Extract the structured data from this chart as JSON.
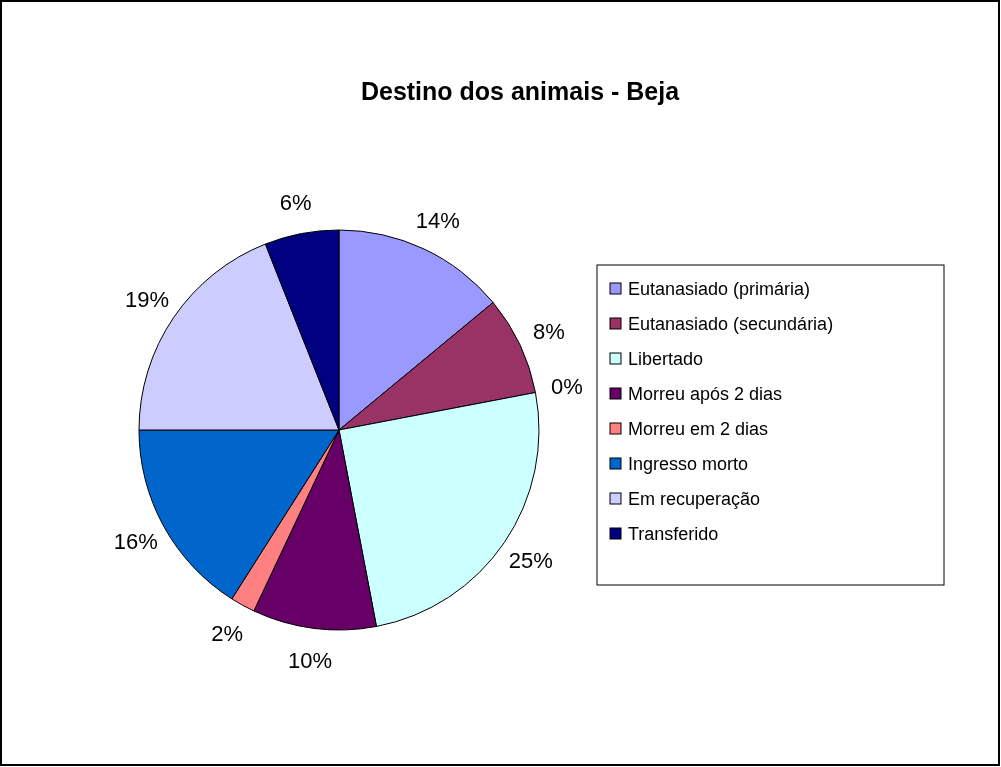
{
  "chart_data": {
    "type": "pie",
    "title": "Destino dos animais - Beja",
    "categories": [
      "Eutanasiado (primária)",
      "Eutanasiado (secundária)",
      null,
      "Libertado",
      "Morreu após 2 dias",
      "Morreu em 2 dias",
      "Ingresso morto",
      "Em recuperação",
      "Transferido"
    ],
    "values": [
      14,
      8,
      0,
      25,
      10,
      2,
      16,
      19,
      6
    ],
    "value_labels": [
      "14%",
      "8%",
      "0%",
      "25%",
      "10%",
      "2%",
      "16%",
      "19%",
      "6%"
    ],
    "colors": [
      "#9999ff",
      "#993366",
      null,
      "#ccffff",
      "#660066",
      "#ff8080",
      "#0066cc",
      "#ccccff",
      "#000080"
    ],
    "legend": "right"
  }
}
